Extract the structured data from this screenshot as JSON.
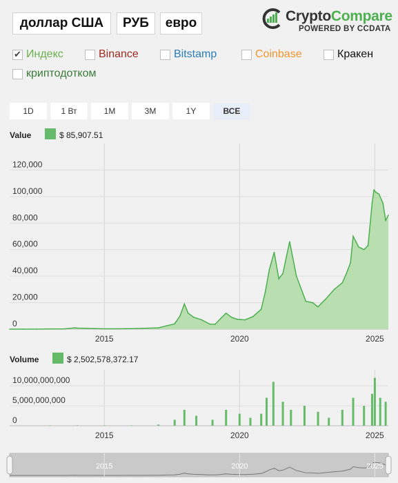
{
  "currencies": [
    {
      "label": "доллар США",
      "active": true
    },
    {
      "label": "РУБ",
      "active": false
    },
    {
      "label": "евро",
      "active": false
    }
  ],
  "logo": {
    "part1": "Crypto",
    "part2": "Compare",
    "subtitle": "POWERED BY CCDATA"
  },
  "exchanges": [
    {
      "label": "Индекс",
      "checked": true,
      "color": "#6ab04c"
    },
    {
      "label": "Binance",
      "checked": false,
      "color": "#9c2a1f"
    },
    {
      "label": "Bitstamp",
      "checked": false,
      "color": "#2a7db8"
    },
    {
      "label": "Coinbase",
      "checked": false,
      "color": "#f0962d"
    },
    {
      "label": "Кракен",
      "checked": false,
      "color": "#111111"
    },
    {
      "label": "криптодотком",
      "checked": false,
      "color": "#3a7a3a"
    }
  ],
  "ranges": [
    {
      "label": "1D",
      "active": false
    },
    {
      "label": "1 Вт",
      "active": false
    },
    {
      "label": "1М",
      "active": false
    },
    {
      "label": "3М",
      "active": false
    },
    {
      "label": "1Y",
      "active": false
    },
    {
      "label": "ВСЕ",
      "active": true
    }
  ],
  "price_panel": {
    "label": "Value",
    "value": "$ 85,907.51"
  },
  "volume_panel": {
    "label": "Volume",
    "value": "$ 2,502,578,372.17"
  },
  "colors": {
    "series": "#66bb6a",
    "fill": "#b9dfb0",
    "line": "#4caf50"
  },
  "chart_data": [
    {
      "type": "area",
      "title": "",
      "series_name": "Value",
      "y_ticks": [
        "0",
        "20,000",
        "40,000",
        "60,000",
        "80,000",
        "100,000",
        "120,000"
      ],
      "x_ticks": [
        "2015",
        "2020",
        "2025"
      ],
      "ylim": [
        0,
        140000
      ],
      "xlim": [
        2011.5,
        2025.5
      ],
      "x": [
        2011.5,
        2012,
        2012.5,
        2013,
        2013.5,
        2013.9,
        2014,
        2014.3,
        2014.6,
        2015,
        2015.5,
        2016,
        2016.5,
        2017,
        2017.3,
        2017.6,
        2017.8,
        2017.96,
        2018.1,
        2018.3,
        2018.6,
        2018.9,
        2019.1,
        2019.3,
        2019.5,
        2019.7,
        2019.9,
        2020.2,
        2020.5,
        2020.8,
        2020.95,
        2021.1,
        2021.28,
        2021.45,
        2021.6,
        2021.85,
        2022.1,
        2022.45,
        2022.7,
        2022.9,
        2023.2,
        2023.5,
        2023.8,
        2023.95,
        2024.1,
        2024.2,
        2024.4,
        2024.6,
        2024.75,
        2024.9,
        2024.97,
        2025.05,
        2025.15,
        2025.3,
        2025.4,
        2025.5
      ],
      "values": [
        0,
        0,
        0,
        100,
        100,
        1000,
        800,
        600,
        450,
        250,
        250,
        430,
        650,
        1000,
        2500,
        4000,
        10000,
        19000,
        12000,
        9000,
        7000,
        3800,
        3700,
        8000,
        12000,
        9000,
        7500,
        7000,
        9500,
        15000,
        28000,
        45000,
        58000,
        38000,
        42000,
        66000,
        40000,
        21000,
        20000,
        16800,
        23000,
        30000,
        35000,
        42000,
        50000,
        70000,
        62000,
        60000,
        63000,
        95000,
        105000,
        103000,
        102000,
        95000,
        82000,
        86000
      ]
    },
    {
      "type": "bar",
      "title": "",
      "series_name": "Volume",
      "y_ticks": [
        "0",
        "5,000,000,000",
        "10,000,000,000"
      ],
      "x_ticks": [
        "2015",
        "2020",
        "2025"
      ],
      "ylim": [
        0,
        14000000000
      ],
      "xlim": [
        2011.5,
        2025.5
      ],
      "x": [
        2013,
        2014,
        2015,
        2016,
        2017,
        2017.6,
        2017.96,
        2018.4,
        2019,
        2019.5,
        2020,
        2020.4,
        2020.8,
        2021,
        2021.25,
        2021.6,
        2021.9,
        2022.4,
        2022.9,
        2023.3,
        2023.8,
        2024.2,
        2024.6,
        2024.9,
        2025,
        2025.2,
        2025.4
      ],
      "values": [
        50000000,
        100000000,
        80000000,
        70000000,
        300000000,
        1500000000,
        4000000000,
        2500000000,
        1500000000,
        4000000000,
        3000000000,
        2000000000,
        3000000000,
        7000000000,
        11000000000,
        6000000000,
        4000000000,
        5000000000,
        3500000000,
        2000000000,
        4000000000,
        7000000000,
        5000000000,
        8000000000,
        12000000000,
        7000000000,
        6000000000
      ]
    },
    {
      "type": "area",
      "title": "navigator",
      "x_ticks": [
        "2015",
        "2020",
        "2025"
      ]
    }
  ]
}
